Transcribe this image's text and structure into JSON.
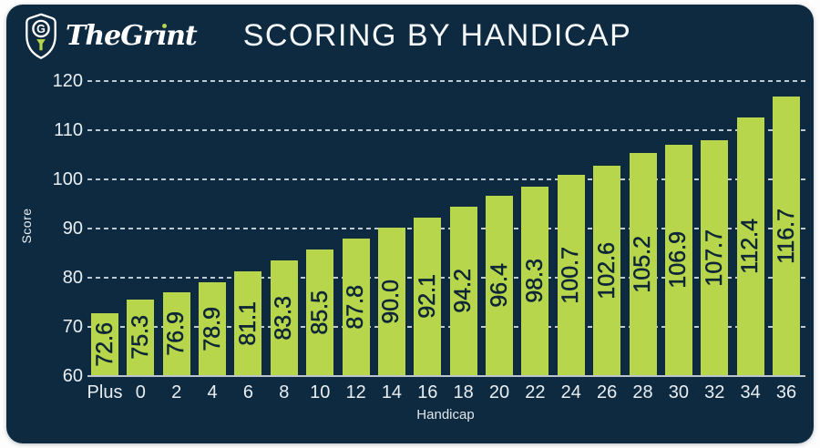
{
  "header": {
    "brand": "TheGrint",
    "title": "SCORING BY HANDICAP"
  },
  "chart_data": {
    "type": "bar",
    "title": "SCORING BY HANDICAP",
    "categories": [
      "Plus",
      "0",
      "2",
      "4",
      "6",
      "8",
      "10",
      "12",
      "14",
      "16",
      "18",
      "20",
      "22",
      "24",
      "26",
      "28",
      "30",
      "32",
      "34",
      "36"
    ],
    "values": [
      72.6,
      75.3,
      76.9,
      78.9,
      81.1,
      83.3,
      85.5,
      87.8,
      90.0,
      92.1,
      94.2,
      96.4,
      98.3,
      100.7,
      102.6,
      105.2,
      106.9,
      107.7,
      112.4,
      116.7
    ],
    "xlabel": "Handicap",
    "ylabel": "Score",
    "ylim": [
      60,
      120
    ],
    "yticks": [
      60,
      70,
      80,
      90,
      100,
      110,
      120
    ],
    "grid": "horizontal-dashed",
    "legend": "none",
    "value_labels": "inside-vertical",
    "colors": {
      "background": "#0e2a40",
      "bar": "#b7d64b",
      "value_label": "#0d2537",
      "tick_label": "#e8eef2",
      "gridline": "#dde6eb",
      "axis_line": "#b9c4cc"
    }
  }
}
